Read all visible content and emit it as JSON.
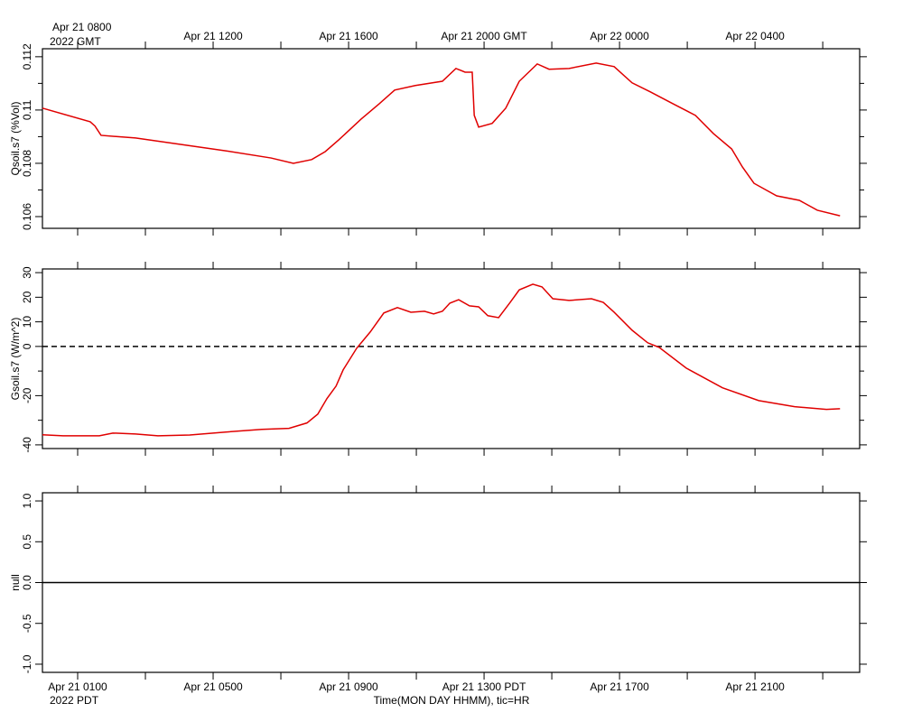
{
  "time_axis": {
    "xlabel": "Time(MON DAY HHMM), tic=HR",
    "pdt_year": "2022 PDT",
    "gmt_year": "2022 GMT",
    "pdt_labels": [
      {
        "value": 1,
        "label": "Apr 21 0100"
      },
      {
        "value": 5,
        "label": "Apr 21 0500"
      },
      {
        "value": 9,
        "label": "Apr 21 0900"
      },
      {
        "value": 13,
        "label": "Apr 21 1300 PDT"
      },
      {
        "value": 17,
        "label": "Apr 21 1700"
      },
      {
        "value": 21,
        "label": "Apr 21 2100"
      }
    ],
    "gmt_labels": [
      {
        "value": 1,
        "label": "Apr 21 0800"
      },
      {
        "value": 5,
        "label": "Apr 21 1200"
      },
      {
        "value": 9,
        "label": "Apr 21 1600"
      },
      {
        "value": 13,
        "label": "Apr 21 2000 GMT"
      },
      {
        "value": 17,
        "label": "Apr 22 0000"
      },
      {
        "value": 21,
        "label": "Apr 22 0400"
      }
    ]
  },
  "chart_data": [
    {
      "type": "line",
      "ylabel": "Qsoil.s7 (%Vol)",
      "xlim": [
        -0.04,
        24.09
      ],
      "xticks": [
        1,
        3,
        5,
        7,
        9,
        11,
        13,
        15,
        17,
        19,
        21,
        23
      ],
      "ylim": [
        0.10556,
        0.1123
      ],
      "yticks": [
        0.106,
        0.108,
        0.11,
        0.112
      ],
      "yminor": [
        0.107,
        0.109,
        0.111
      ],
      "x": [
        -0.04,
        1.37,
        1.51,
        1.69,
        2.71,
        4.04,
        5.37,
        6.71,
        7.37,
        7.91,
        8.31,
        8.71,
        9.37,
        9.91,
        10.36,
        10.97,
        11.77,
        12.17,
        12.44,
        12.65,
        12.71,
        12.84,
        13.24,
        13.64,
        14.04,
        14.57,
        14.92,
        15.51,
        16.31,
        16.84,
        17.37,
        17.91,
        18.57,
        19.24,
        19.77,
        20.31,
        20.63,
        20.97,
        21.64,
        22.31,
        22.84,
        23.51
      ],
      "series": [
        {
          "color": "#e00000",
          "values": [
            0.11007,
            0.10956,
            0.1094,
            0.10905,
            0.10895,
            0.10871,
            0.10847,
            0.1082,
            0.108,
            0.10814,
            0.10844,
            0.10888,
            0.10966,
            0.11024,
            0.11075,
            0.11092,
            0.11108,
            0.11156,
            0.11142,
            0.11142,
            0.1098,
            0.10936,
            0.1095,
            0.11007,
            0.11108,
            0.11173,
            0.11153,
            0.11156,
            0.11176,
            0.11163,
            0.11102,
            0.11068,
            0.11024,
            0.1098,
            0.10912,
            0.10854,
            0.10786,
            0.10725,
            0.10678,
            0.10661,
            0.10624,
            0.10603
          ]
        }
      ]
    },
    {
      "type": "line",
      "ylabel": "Gsoil.s7 (W/m^2)",
      "xlim": [
        -0.04,
        24.09
      ],
      "xticks": [
        1,
        3,
        5,
        7,
        9,
        11,
        13,
        15,
        17,
        19,
        21,
        23
      ],
      "ylim": [
        -41.5,
        31.5
      ],
      "yticks": [
        -40,
        -20,
        0,
        10,
        20,
        30
      ],
      "yminor": [
        -30,
        -10
      ],
      "zero_line": "dashed",
      "x": [
        -0.04,
        0.57,
        1.64,
        2.04,
        2.71,
        3.37,
        4.31,
        5.37,
        6.44,
        7.24,
        7.77,
        8.09,
        8.36,
        8.63,
        8.84,
        9.24,
        9.64,
        10.04,
        10.44,
        10.84,
        11.24,
        11.51,
        11.77,
        11.99,
        12.25,
        12.57,
        12.84,
        13.11,
        13.43,
        13.77,
        14.04,
        14.44,
        14.71,
        15.03,
        15.51,
        16.17,
        16.52,
        16.84,
        17.37,
        17.83,
        18.17,
        18.97,
        20.04,
        21.11,
        22.17,
        23.11,
        23.51
      ],
      "series": [
        {
          "color": "#e00000",
          "values": [
            -35.9,
            -36.3,
            -36.3,
            -35.2,
            -35.6,
            -36.3,
            -36,
            -34.8,
            -33.7,
            -33.3,
            -31.1,
            -27.5,
            -21.2,
            -16.1,
            -9.5,
            -0.7,
            5.9,
            13.6,
            15.8,
            13.9,
            14.3,
            13.2,
            14.3,
            17.6,
            19,
            16.5,
            16.1,
            12.5,
            11.7,
            17.9,
            23,
            25.3,
            24.2,
            19.4,
            18.7,
            19.4,
            17.9,
            13.9,
            6.6,
            1.5,
            -0.4,
            -8.8,
            -16.8,
            -22,
            -24.5,
            -25.6,
            -25.3
          ]
        }
      ]
    },
    {
      "type": "line",
      "ylabel": "null",
      "xlim": [
        -0.04,
        24.09
      ],
      "xticks": [
        1,
        3,
        5,
        7,
        9,
        11,
        13,
        15,
        17,
        19,
        21,
        23
      ],
      "ylim": [
        -1.1,
        1.1
      ],
      "yticks": [
        {
          "value": -1,
          "label": "-1.0"
        },
        {
          "value": -0.5,
          "label": "-0.5"
        },
        {
          "value": 0,
          "label": "0.0"
        },
        {
          "value": 0.5,
          "label": "0.5"
        },
        {
          "value": 1,
          "label": "1.0"
        }
      ],
      "zero_line": "solid",
      "series": []
    }
  ]
}
